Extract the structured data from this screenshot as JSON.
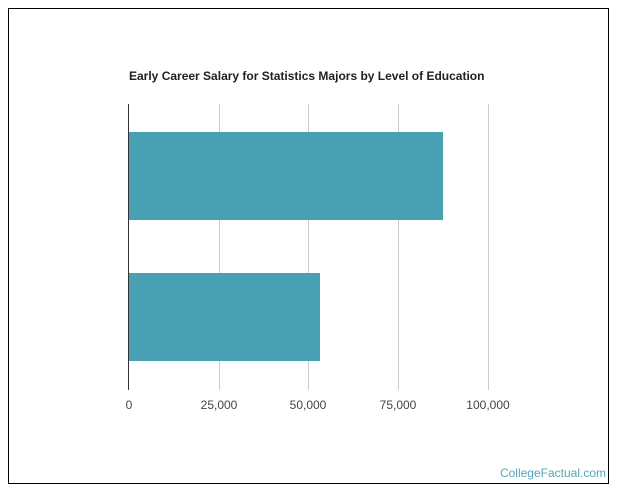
{
  "chart_data": {
    "type": "bar",
    "orientation": "horizontal",
    "title": "Early Career Salary for Statistics Majors by Level of Education",
    "categories": [
      "",
      ""
    ],
    "values": [
      87500,
      53200
    ],
    "xlabel": "",
    "ylabel": "",
    "xlim": [
      0,
      100000
    ],
    "xticks": [
      "0",
      "25,000",
      "50,000",
      "75,000",
      "100,000"
    ],
    "grid": true,
    "legend": "none",
    "bar_color": "#4aa0b3"
  },
  "credit": "CollegeFactual.com"
}
